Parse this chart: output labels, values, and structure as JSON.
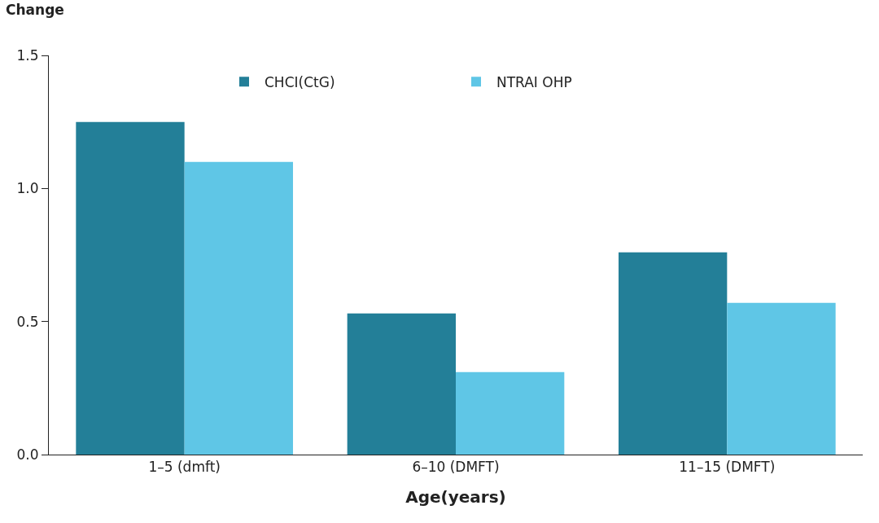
{
  "chart_data": {
    "type": "bar",
    "ylabel": "Change",
    "xlabel": "Age(years)",
    "categories": [
      "1–5 (dmft)",
      "6–10 (DMFT)",
      "11–15 (DMFT)"
    ],
    "series": [
      {
        "name": "CHCI(CtG)",
        "color": "#237f98",
        "values": [
          1.25,
          0.53,
          0.76
        ]
      },
      {
        "name": "NTRAI OHP",
        "color": "#5fc6e6",
        "values": [
          1.1,
          0.31,
          0.57
        ]
      }
    ],
    "ylim": [
      0,
      1.5
    ],
    "yticks": [
      {
        "value": 0,
        "label": "0.0"
      },
      {
        "value": 0.5,
        "label": "0.5"
      },
      {
        "value": 1,
        "label": "1.0"
      },
      {
        "value": 1.5,
        "label": "1.5"
      }
    ],
    "grid": false,
    "legend": "top"
  }
}
